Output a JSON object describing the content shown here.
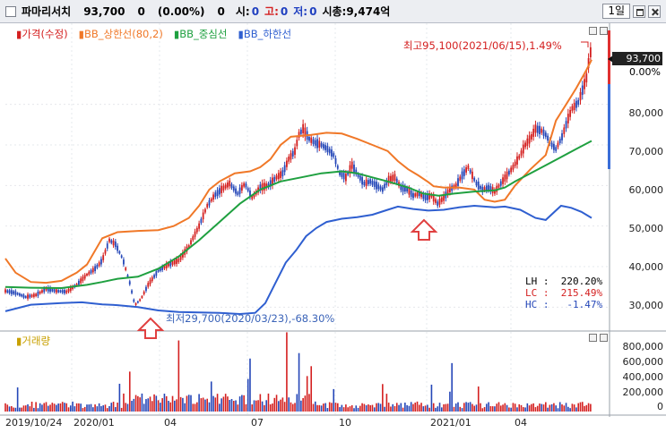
{
  "header": {
    "name": "파마리서치",
    "price": "93,700",
    "change": "0",
    "change_pct": "(0.00%)",
    "volume": "0",
    "open_label": "시:",
    "open_value": "0",
    "high_label": "고:",
    "high_value": "0",
    "low_label": "저:",
    "low_value": "0",
    "mcap": "시총:9,474억",
    "period": "1일"
  },
  "legend": {
    "price": "가격(수정)",
    "upper": "BB_상한선(80,2)",
    "mid": "BB_중심선",
    "lower": "BB_하한선",
    "volume": "거래량"
  },
  "annotations": {
    "max": "최고95,100(2021/06/15),1.49%",
    "min": "최저29,700(2020/03/23),-68.30%"
  },
  "tags": {
    "last_price": "93,700",
    "last_pct": "0.00%"
  },
  "stats": {
    "lh": "LH :  220.20%",
    "lc": "LC :  215.49%",
    "hc": "HC :   -1.47%"
  },
  "price_axis": [
    "80,000",
    "70,000",
    "60,000",
    "50,000",
    "40,000",
    "30,000"
  ],
  "volume_axis": [
    "800,000",
    "600,000",
    "400,000",
    "200,000",
    "0"
  ],
  "x_axis": [
    "2019/10/24",
    "2020/01",
    "04",
    "07",
    "10",
    "2021/01",
    "04"
  ],
  "colors": {
    "price_up": "#d42020",
    "price_down": "#2547b8",
    "upper_band": "#f07828",
    "middle_band": "#1fa040",
    "lower_band": "#2f5fd0",
    "arrow": "#e04040"
  },
  "chart_data": {
    "type": "line",
    "x_range": [
      "2019/10/24",
      "2021/06/17"
    ],
    "price_range": [
      25000,
      100000
    ],
    "volume_range": [
      0,
      900000
    ],
    "series": [
      {
        "name": "BB_상한선(80,2)",
        "points": [
          [
            0,
            42000
          ],
          [
            10,
            38500
          ],
          [
            25,
            36200
          ],
          [
            40,
            36000
          ],
          [
            55,
            36500
          ],
          [
            70,
            38500
          ],
          [
            80,
            40500
          ],
          [
            95,
            47000
          ],
          [
            110,
            48500
          ],
          [
            130,
            48800
          ],
          [
            150,
            49000
          ],
          [
            165,
            50000
          ],
          [
            180,
            52000
          ],
          [
            190,
            55000
          ],
          [
            200,
            59000
          ],
          [
            210,
            61000
          ],
          [
            225,
            63000
          ],
          [
            240,
            63500
          ],
          [
            250,
            64500
          ],
          [
            260,
            66500
          ],
          [
            270,
            70000
          ],
          [
            280,
            72000
          ],
          [
            300,
            72500
          ],
          [
            315,
            73000
          ],
          [
            330,
            72800
          ],
          [
            345,
            71500
          ],
          [
            360,
            70000
          ],
          [
            375,
            68500
          ],
          [
            385,
            66000
          ],
          [
            395,
            64000
          ],
          [
            405,
            62500
          ],
          [
            415,
            60800
          ],
          [
            420,
            59800
          ],
          [
            430,
            59500
          ],
          [
            445,
            59500
          ],
          [
            460,
            59000
          ],
          [
            470,
            56500
          ],
          [
            480,
            56000
          ],
          [
            490,
            56500
          ],
          [
            500,
            60000
          ],
          [
            515,
            64000
          ],
          [
            530,
            67500
          ],
          [
            540,
            76000
          ],
          [
            550,
            80000
          ],
          [
            560,
            84000
          ],
          [
            570,
            88500
          ],
          [
            575,
            91000
          ]
        ]
      },
      {
        "name": "BB_중심선",
        "points": [
          [
            0,
            35000
          ],
          [
            25,
            34800
          ],
          [
            55,
            34700
          ],
          [
            80,
            35500
          ],
          [
            95,
            36200
          ],
          [
            110,
            37000
          ],
          [
            130,
            37500
          ],
          [
            150,
            39500
          ],
          [
            170,
            42500
          ],
          [
            190,
            46500
          ],
          [
            210,
            51000
          ],
          [
            230,
            55500
          ],
          [
            250,
            59000
          ],
          [
            270,
            61000
          ],
          [
            290,
            62000
          ],
          [
            310,
            63000
          ],
          [
            330,
            63500
          ],
          [
            345,
            63000
          ],
          [
            360,
            62000
          ],
          [
            375,
            61000
          ],
          [
            395,
            59500
          ],
          [
            410,
            58000
          ],
          [
            425,
            57500
          ],
          [
            440,
            58000
          ],
          [
            460,
            58500
          ],
          [
            480,
            58800
          ],
          [
            490,
            59500
          ],
          [
            500,
            61000
          ],
          [
            515,
            63000
          ],
          [
            530,
            65000
          ],
          [
            545,
            67000
          ],
          [
            560,
            69000
          ],
          [
            575,
            71000
          ]
        ]
      },
      {
        "name": "BB_하한선",
        "points": [
          [
            0,
            29000
          ],
          [
            25,
            30600
          ],
          [
            55,
            31000
          ],
          [
            75,
            31200
          ],
          [
            95,
            30700
          ],
          [
            110,
            30500
          ],
          [
            130,
            30000
          ],
          [
            150,
            29200
          ],
          [
            170,
            28800
          ],
          [
            190,
            28700
          ],
          [
            210,
            28600
          ],
          [
            230,
            28300
          ],
          [
            245,
            28600
          ],
          [
            255,
            31000
          ],
          [
            265,
            36000
          ],
          [
            275,
            41000
          ],
          [
            285,
            44000
          ],
          [
            295,
            47500
          ],
          [
            305,
            49500
          ],
          [
            315,
            51000
          ],
          [
            330,
            51800
          ],
          [
            345,
            52200
          ],
          [
            360,
            52800
          ],
          [
            375,
            54000
          ],
          [
            385,
            54800
          ],
          [
            400,
            54200
          ],
          [
            415,
            53800
          ],
          [
            430,
            54000
          ],
          [
            445,
            54600
          ],
          [
            460,
            55000
          ],
          [
            470,
            54800
          ],
          [
            480,
            54600
          ],
          [
            490,
            54800
          ],
          [
            505,
            54000
          ],
          [
            520,
            52000
          ],
          [
            530,
            51500
          ],
          [
            545,
            55000
          ],
          [
            555,
            54500
          ],
          [
            565,
            53500
          ],
          [
            575,
            52000
          ]
        ]
      },
      {
        "name": "가격(수정)",
        "points": [
          [
            0,
            34000
          ],
          [
            10,
            33500
          ],
          [
            20,
            32500
          ],
          [
            30,
            33000
          ],
          [
            40,
            34500
          ],
          [
            50,
            34000
          ],
          [
            60,
            33800
          ],
          [
            70,
            35500
          ],
          [
            80,
            38000
          ],
          [
            88,
            39500
          ],
          [
            95,
            41500
          ],
          [
            102,
            46500
          ],
          [
            108,
            45500
          ],
          [
            115,
            42000
          ],
          [
            122,
            36000
          ],
          [
            127,
            30500
          ],
          [
            133,
            32000
          ],
          [
            140,
            35500
          ],
          [
            150,
            39000
          ],
          [
            160,
            40500
          ],
          [
            170,
            41500
          ],
          [
            180,
            45000
          ],
          [
            190,
            50000
          ],
          [
            198,
            55000
          ],
          [
            205,
            57500
          ],
          [
            212,
            59000
          ],
          [
            220,
            60500
          ],
          [
            228,
            58000
          ],
          [
            235,
            60500
          ],
          [
            242,
            57000
          ],
          [
            250,
            59500
          ],
          [
            258,
            60000
          ],
          [
            266,
            62000
          ],
          [
            272,
            63000
          ],
          [
            278,
            66500
          ],
          [
            284,
            68500
          ],
          [
            288,
            72500
          ],
          [
            292,
            74000
          ],
          [
            298,
            71500
          ],
          [
            304,
            70500
          ],
          [
            310,
            70000
          ],
          [
            316,
            69000
          ],
          [
            322,
            67500
          ],
          [
            328,
            63000
          ],
          [
            334,
            62000
          ],
          [
            340,
            65000
          ],
          [
            346,
            62500
          ],
          [
            352,
            60500
          ],
          [
            358,
            61000
          ],
          [
            364,
            60000
          ],
          [
            370,
            59000
          ],
          [
            376,
            61500
          ],
          [
            382,
            62000
          ],
          [
            388,
            59500
          ],
          [
            394,
            59000
          ],
          [
            400,
            57500
          ],
          [
            406,
            58000
          ],
          [
            412,
            57000
          ],
          [
            418,
            57500
          ],
          [
            424,
            55500
          ],
          [
            430,
            57000
          ],
          [
            436,
            59000
          ],
          [
            442,
            60000
          ],
          [
            448,
            62500
          ],
          [
            454,
            64500
          ],
          [
            458,
            62500
          ],
          [
            462,
            60500
          ],
          [
            468,
            59000
          ],
          [
            474,
            59500
          ],
          [
            480,
            58500
          ],
          [
            486,
            60500
          ],
          [
            492,
            62500
          ],
          [
            498,
            64500
          ],
          [
            504,
            67000
          ],
          [
            510,
            70000
          ],
          [
            516,
            72000
          ],
          [
            520,
            74000
          ],
          [
            526,
            73500
          ],
          [
            530,
            72500
          ],
          [
            536,
            70000
          ],
          [
            540,
            69000
          ],
          [
            546,
            72000
          ],
          [
            552,
            76500
          ],
          [
            556,
            79000
          ],
          [
            562,
            80500
          ],
          [
            566,
            83500
          ],
          [
            570,
            86500
          ],
          [
            573,
            92000
          ],
          [
            575,
            93700
          ]
        ]
      }
    ]
  }
}
